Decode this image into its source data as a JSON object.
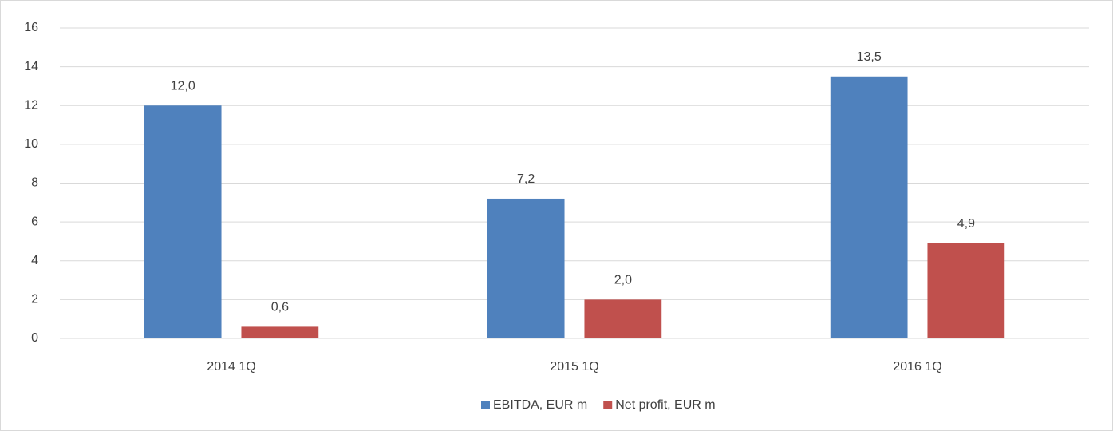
{
  "chart_data": {
    "type": "bar",
    "categories": [
      "2014 1Q",
      "2015 1Q",
      "2016 1Q"
    ],
    "series": [
      {
        "name": "EBITDA, EUR m",
        "color": "#4f81bd",
        "values": [
          12.0,
          7.2,
          13.5
        ],
        "value_labels": [
          "12,0",
          "7,2",
          "13,5"
        ]
      },
      {
        "name": "Net profit, EUR m",
        "color": "#c0504d",
        "values": [
          0.6,
          2.0,
          4.9
        ],
        "value_labels": [
          "0,6",
          "2,0",
          "4,9"
        ]
      }
    ],
    "ylim": [
      0,
      16
    ],
    "yticks": [
      0,
      2,
      4,
      6,
      8,
      10,
      12,
      14,
      16
    ],
    "grid": true,
    "legend": "bottom"
  }
}
